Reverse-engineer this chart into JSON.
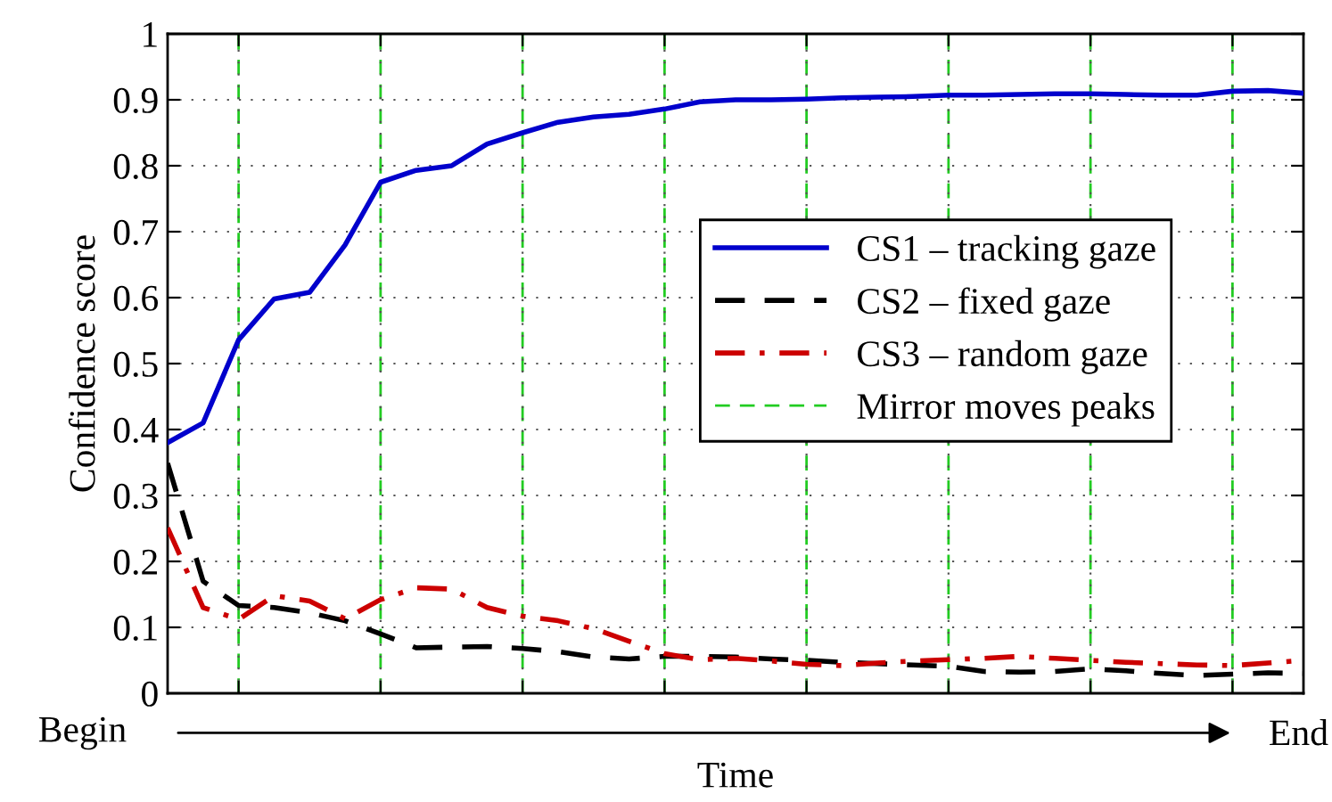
{
  "chart_data": {
    "type": "line",
    "ylabel": "Confidence score",
    "xlabel": "Time",
    "annotations": [
      "Begin",
      "End",
      "Mirror moves peaks"
    ],
    "categories": [
      null,
      null,
      null,
      null,
      null,
      null,
      null,
      null,
      null,
      null,
      null,
      null,
      null,
      null,
      null,
      null,
      null,
      null,
      null,
      null,
      null,
      null,
      null,
      null,
      null,
      null,
      null,
      null,
      null,
      null,
      null,
      null,
      null
    ],
    "ylim": [
      0,
      1
    ],
    "yticks": [
      0,
      0.1,
      0.2,
      0.3,
      0.4,
      0.5,
      0.6,
      0.7,
      0.8,
      0.9,
      1
    ],
    "grid": true,
    "legend": "center right",
    "series": [
      {
        "name": "CS1 – tracking gaze",
        "color": "#0000cc",
        "line_style": "solid",
        "values": [
          0.38,
          0.41,
          0.536,
          0.598,
          0.608,
          0.68,
          0.775,
          0.793,
          0.8,
          0.833,
          0.85,
          0.866,
          0.874,
          0.878,
          0.886,
          0.897,
          0.9,
          0.9,
          0.901,
          0.903,
          0.904,
          0.905,
          0.907,
          0.907,
          0.908,
          0.909,
          0.909,
          0.908,
          0.907,
          0.907,
          0.913,
          0.914,
          0.91
        ]
      },
      {
        "name": "CS2 – fixed gaze",
        "color": "#000000",
        "line_style": "dashed",
        "values": [
          0.349,
          0.17,
          0.133,
          0.13,
          0.122,
          0.11,
          0.09,
          0.069,
          0.07,
          0.071,
          0.068,
          0.063,
          0.055,
          0.052,
          0.056,
          0.056,
          0.055,
          0.052,
          0.05,
          0.047,
          0.045,
          0.043,
          0.041,
          0.033,
          0.032,
          0.033,
          0.037,
          0.034,
          0.03,
          0.027,
          0.029,
          0.031,
          0.03
        ]
      },
      {
        "name": "CS3 – random gaze",
        "color": "#cc0000",
        "line_style": "dashdot",
        "values": [
          0.251,
          0.13,
          0.112,
          0.148,
          0.14,
          0.113,
          0.142,
          0.16,
          0.158,
          0.13,
          0.117,
          0.11,
          0.098,
          0.079,
          0.06,
          0.051,
          0.053,
          0.049,
          0.044,
          0.042,
          0.046,
          0.049,
          0.051,
          0.053,
          0.056,
          0.053,
          0.05,
          0.047,
          0.045,
          0.043,
          0.042,
          0.046,
          0.05
        ]
      }
    ]
  }
}
